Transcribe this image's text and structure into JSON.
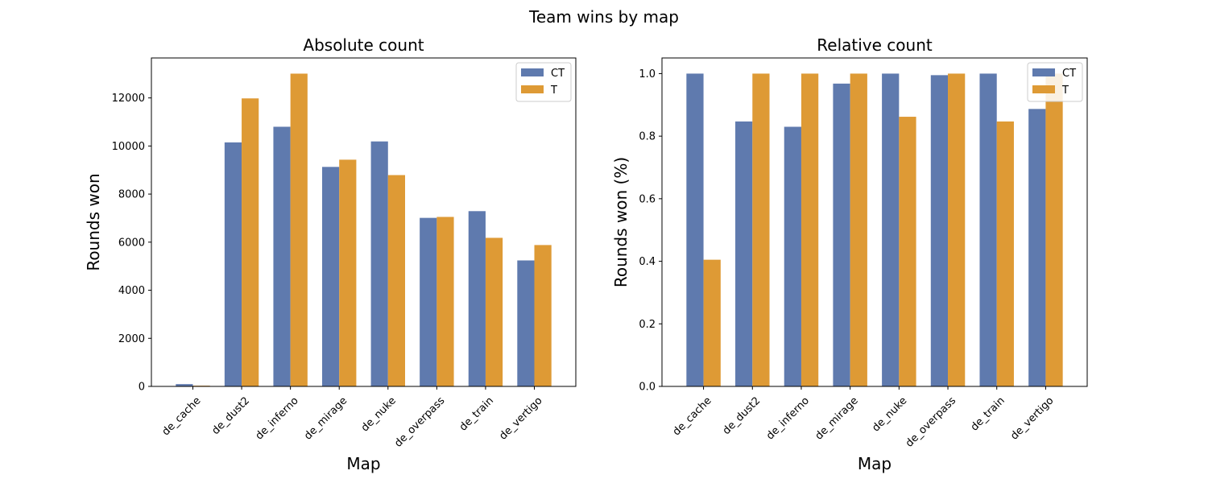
{
  "figure": {
    "title": "Team wins by map"
  },
  "colors": {
    "CT": "#5f7aae",
    "T": "#de9a35"
  },
  "chart_data": [
    {
      "type": "bar",
      "title": "Absolute count",
      "xlabel": "Map",
      "ylabel": "Rounds won",
      "ylim": [
        0,
        13662
      ],
      "yticks": [
        0,
        2000,
        4000,
        6000,
        8000,
        10000,
        12000
      ],
      "ytick_labels": [
        "0",
        "2000",
        "4000",
        "6000",
        "8000",
        "10000",
        "12000"
      ],
      "categories": [
        "de_cache",
        "de_dust2",
        "de_inferno",
        "de_mirage",
        "de_nuke",
        "de_overpass",
        "de_train",
        "de_vertigo"
      ],
      "legend": {
        "placement": "top-right"
      },
      "grid": false,
      "series": [
        {
          "name": "CT",
          "values": [
            95,
            10150,
            10800,
            9130,
            10190,
            7010,
            7290,
            5240
          ]
        },
        {
          "name": "T",
          "values": [
            30,
            11980,
            13010,
            9430,
            8790,
            7050,
            6180,
            5880
          ]
        }
      ]
    },
    {
      "type": "bar",
      "title": "Relative count",
      "xlabel": "Map",
      "ylabel": "Rounds won (%)",
      "ylim": [
        0,
        1.05
      ],
      "yticks": [
        0,
        0.2,
        0.4,
        0.6,
        0.8,
        1.0
      ],
      "ytick_labels": [
        "0.0",
        "0.2",
        "0.4",
        "0.6",
        "0.8",
        "1.0"
      ],
      "categories": [
        "de_cache",
        "de_dust2",
        "de_inferno",
        "de_mirage",
        "de_nuke",
        "de_overpass",
        "de_train",
        "de_vertigo"
      ],
      "legend": {
        "placement": "top-right"
      },
      "grid": false,
      "series": [
        {
          "name": "CT",
          "values": [
            1.0,
            0.847,
            0.83,
            0.968,
            1.0,
            0.995,
            1.0,
            0.887
          ]
        },
        {
          "name": "T",
          "values": [
            0.405,
            1.0,
            1.0,
            1.0,
            0.862,
            1.0,
            0.847,
            1.0
          ]
        }
      ]
    }
  ]
}
